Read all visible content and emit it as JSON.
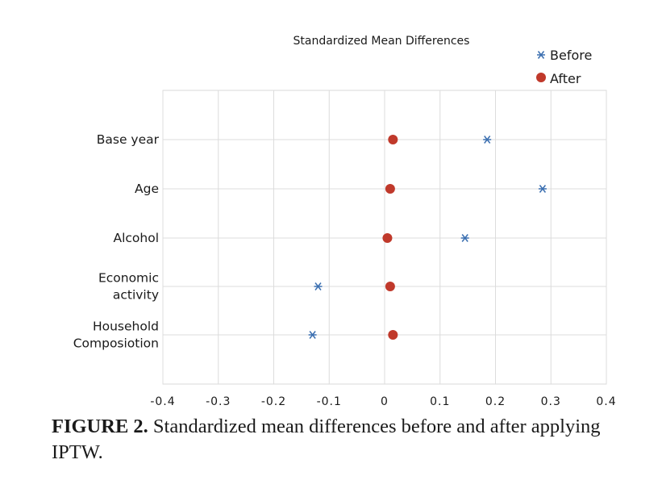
{
  "chart_data": {
    "type": "scatter",
    "title": "Standardized Mean Differences",
    "categories": [
      [
        "Base year"
      ],
      [
        "Age"
      ],
      [
        "Alcohol"
      ],
      [
        "Economic",
        "activity"
      ],
      [
        "Household",
        "Composiotion"
      ]
    ],
    "series": [
      {
        "name": "Before",
        "marker": "asterisk",
        "color": "#3b6fb0",
        "values": [
          0.185,
          0.285,
          0.145,
          -0.12,
          -0.13
        ]
      },
      {
        "name": "After",
        "marker": "circle",
        "color": "#c0392b",
        "values": [
          0.015,
          0.01,
          0.005,
          0.01,
          0.015
        ]
      }
    ],
    "xlim": [
      -0.4,
      0.4
    ],
    "xticks": [
      -0.4,
      -0.3,
      -0.2,
      -0.1,
      0,
      0.1,
      0.2,
      0.3,
      0.4
    ],
    "xtick_labels": [
      "-0.4",
      "-0.3",
      "-0.2",
      "-0.1",
      "0",
      "0.1",
      "0.2",
      "0.3",
      "0.4"
    ],
    "xlabel": "",
    "ylabel": "",
    "grid": true,
    "legend": "top-right"
  },
  "caption": {
    "label": "FIGURE 2.",
    "text": " Standardized mean differences before and after applying IPTW."
  }
}
